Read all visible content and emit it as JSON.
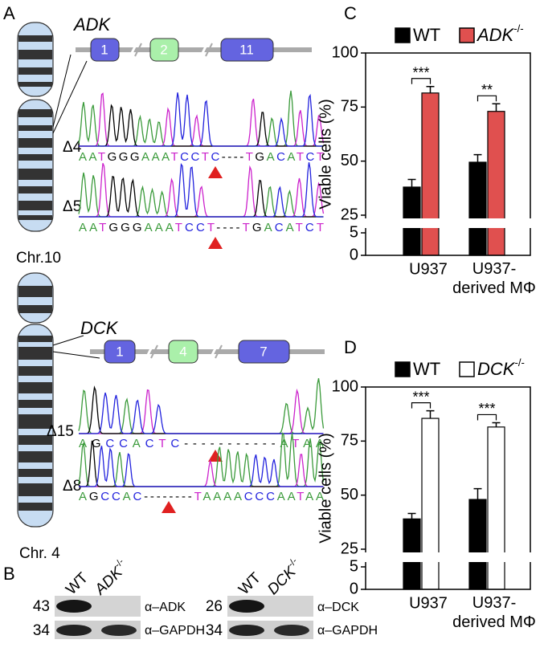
{
  "panel_a": {
    "label": "A",
    "adk": {
      "gene": "ADK",
      "exons": [
        "1",
        "2",
        "11"
      ],
      "chromosome": "Chr.10",
      "alleles": [
        {
          "label": "Δ4",
          "sequence": "AATGGGAAATCCTC----TGACATCT"
        },
        {
          "label": "Δ5",
          "sequence": "AATGGGAAATCCT----TGACATCT"
        }
      ]
    },
    "dck": {
      "gene": "DCK",
      "exons": [
        "1",
        "4",
        "7"
      ],
      "chromosome": "Chr. 4",
      "alleles": [
        {
          "label": "Δ15",
          "sequence": "AGCCACTC-----------ATAA"
        },
        {
          "label": "Δ8",
          "sequence": "AGCCAC--------TAAAACCCAATAA"
        }
      ]
    }
  },
  "panel_b": {
    "label": "B",
    "blots": [
      {
        "lanes": [
          "WT",
          "ADK-/-"
        ],
        "rows": [
          {
            "mw": 43,
            "antibody": "α–ADK"
          },
          {
            "mw": 34,
            "antibody": "α–GAPDH"
          }
        ]
      },
      {
        "lanes": [
          "WT",
          "DCK-/-"
        ],
        "rows": [
          {
            "mw": 26,
            "antibody": "α–DCK"
          },
          {
            "mw": 34,
            "antibody": "α–GAPDH"
          }
        ]
      }
    ]
  },
  "chart_data": [
    {
      "type": "bar",
      "panel_label": "C",
      "ylabel": "Viable cells (%)",
      "categories": [
        "U937",
        "U937-\nderived MΦ"
      ],
      "series": [
        {
          "name": "WT",
          "color": "#000000",
          "values": [
            38,
            49.5
          ],
          "errors": [
            3.5,
            3.5
          ]
        },
        {
          "name": "ADK-/-",
          "color": "#e0504f",
          "values": [
            81.5,
            73
          ],
          "errors": [
            3,
            3.5
          ]
        }
      ],
      "annotations": [
        "***",
        "**"
      ],
      "ylim": [
        0,
        100
      ],
      "yticks": [
        0,
        5,
        25,
        50,
        75,
        100
      ],
      "ybreak": [
        5,
        25
      ]
    },
    {
      "type": "bar",
      "panel_label": "D",
      "ylabel": "Viable cells (%)",
      "categories": [
        "U937",
        "U937-\nderived MΦ"
      ],
      "series": [
        {
          "name": "WT",
          "color": "#000000",
          "values": [
            39,
            48
          ],
          "errors": [
            2.5,
            5
          ]
        },
        {
          "name": "DCK-/-",
          "color": "#ffffff",
          "values": [
            85.5,
            81.5
          ],
          "errors": [
            3.5,
            2
          ]
        }
      ],
      "annotations": [
        "***",
        "***"
      ],
      "ylim": [
        0,
        100
      ],
      "yticks": [
        0,
        5,
        25,
        50,
        75,
        100
      ],
      "ybreak": [
        5,
        25
      ]
    }
  ]
}
